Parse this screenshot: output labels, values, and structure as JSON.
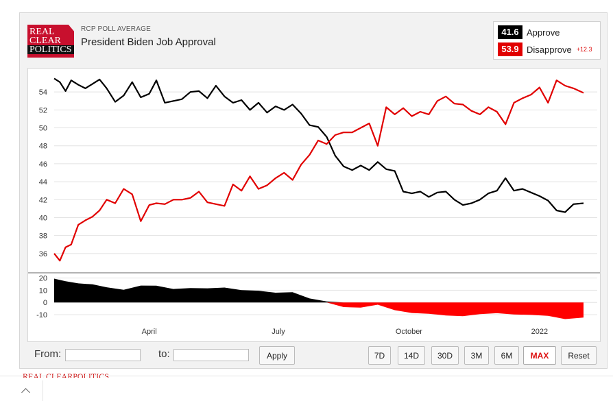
{
  "header": {
    "logo_lines": [
      "REAL",
      "CLEAR",
      "POLITICS"
    ],
    "kicker": "RCP POLL AVERAGE",
    "title": "President Biden Job Approval"
  },
  "legend": {
    "approve": {
      "value": "41.6",
      "name": "Approve",
      "color": "#000000"
    },
    "disapprove": {
      "value": "53.9",
      "name": "Disapprove",
      "color": "#e10000",
      "spread": "+12.3"
    }
  },
  "controls": {
    "from_label": "From:",
    "to_label": "to:",
    "from_value": "",
    "to_value": "",
    "apply_label": "Apply",
    "ranges": [
      "7D",
      "14D",
      "30D",
      "3M",
      "6M",
      "MAX",
      "Reset"
    ],
    "active_range": "MAX"
  },
  "footer": {
    "text": "REAL CLEARPOLITICS"
  },
  "chart_data": [
    {
      "type": "line",
      "x_axis": {
        "ticks": [
          "April",
          "July",
          "October",
          "2022"
        ]
      },
      "y_axis": {
        "ylim": [
          34,
          56
        ],
        "ticks": [
          36,
          38,
          40,
          42,
          44,
          46,
          48,
          50,
          52,
          54
        ]
      },
      "grid": true,
      "colors": {
        "approve": "#000000",
        "disapprove": "#e10000"
      },
      "series": [
        {
          "name": "Approve",
          "color": "#000000",
          "x": [
            "2021-01-24",
            "2021-01-28",
            "2021-02-01",
            "2021-02-05",
            "2021-02-10",
            "2021-02-15",
            "2021-02-20",
            "2021-02-25",
            "2021-03-02",
            "2021-03-08",
            "2021-03-14",
            "2021-03-20",
            "2021-03-26",
            "2021-04-01",
            "2021-04-06",
            "2021-04-12",
            "2021-04-18",
            "2021-04-24",
            "2021-04-30",
            "2021-05-06",
            "2021-05-12",
            "2021-05-18",
            "2021-05-24",
            "2021-05-30",
            "2021-06-05",
            "2021-06-11",
            "2021-06-17",
            "2021-06-23",
            "2021-06-29",
            "2021-07-05",
            "2021-07-11",
            "2021-07-17",
            "2021-07-23",
            "2021-07-29",
            "2021-08-04",
            "2021-08-10",
            "2021-08-16",
            "2021-08-22",
            "2021-08-28",
            "2021-09-03",
            "2021-09-09",
            "2021-09-15",
            "2021-09-21",
            "2021-09-27",
            "2021-10-03",
            "2021-10-09",
            "2021-10-15",
            "2021-10-21",
            "2021-10-27",
            "2021-11-02",
            "2021-11-08",
            "2021-11-14",
            "2021-11-20",
            "2021-11-26",
            "2021-12-02",
            "2021-12-08",
            "2021-12-14",
            "2021-12-20",
            "2021-12-26",
            "2022-01-01",
            "2022-01-07",
            "2022-01-13",
            "2022-01-19",
            "2022-01-25",
            "2022-02-01"
          ],
          "values": [
            55.5,
            55.1,
            54.1,
            55.3,
            54.8,
            54.4,
            54.9,
            55.4,
            54.4,
            52.9,
            53.6,
            55.1,
            53.4,
            53.8,
            55.3,
            52.8,
            53.0,
            53.2,
            54.0,
            54.1,
            53.3,
            54.7,
            53.5,
            52.8,
            53.1,
            52.0,
            52.8,
            51.7,
            52.4,
            52.0,
            52.6,
            51.6,
            50.3,
            50.1,
            49.0,
            46.9,
            45.7,
            45.3,
            45.8,
            45.3,
            46.2,
            45.4,
            45.2,
            42.9,
            42.7,
            42.9,
            42.3,
            42.8,
            42.9,
            42.0,
            41.4,
            41.6,
            42.0,
            42.7,
            43.0,
            44.4,
            43.0,
            43.2,
            42.8,
            42.4,
            41.9,
            40.8,
            40.6,
            41.5,
            41.6
          ]
        },
        {
          "name": "Disapprove",
          "color": "#e10000",
          "x": [
            "2021-01-24",
            "2021-01-28",
            "2021-02-01",
            "2021-02-05",
            "2021-02-10",
            "2021-02-15",
            "2021-02-20",
            "2021-02-25",
            "2021-03-02",
            "2021-03-08",
            "2021-03-14",
            "2021-03-20",
            "2021-03-26",
            "2021-04-01",
            "2021-04-06",
            "2021-04-12",
            "2021-04-18",
            "2021-04-24",
            "2021-04-30",
            "2021-05-06",
            "2021-05-12",
            "2021-05-18",
            "2021-05-24",
            "2021-05-30",
            "2021-06-05",
            "2021-06-11",
            "2021-06-17",
            "2021-06-23",
            "2021-06-29",
            "2021-07-05",
            "2021-07-11",
            "2021-07-17",
            "2021-07-23",
            "2021-07-29",
            "2021-08-04",
            "2021-08-10",
            "2021-08-16",
            "2021-08-22",
            "2021-08-28",
            "2021-09-03",
            "2021-09-09",
            "2021-09-15",
            "2021-09-21",
            "2021-09-27",
            "2021-10-03",
            "2021-10-09",
            "2021-10-15",
            "2021-10-21",
            "2021-10-27",
            "2021-11-02",
            "2021-11-08",
            "2021-11-14",
            "2021-11-20",
            "2021-11-26",
            "2021-12-02",
            "2021-12-08",
            "2021-12-14",
            "2021-12-20",
            "2021-12-26",
            "2022-01-01",
            "2022-01-07",
            "2022-01-13",
            "2022-01-19",
            "2022-01-25",
            "2022-02-01"
          ],
          "values": [
            36.0,
            35.2,
            36.7,
            37.0,
            39.2,
            39.7,
            40.1,
            40.8,
            42.0,
            41.6,
            43.2,
            42.6,
            39.6,
            41.4,
            41.6,
            41.5,
            42.0,
            42.0,
            42.2,
            42.9,
            41.7,
            41.5,
            41.3,
            43.7,
            43.0,
            44.6,
            43.2,
            43.6,
            44.4,
            45.0,
            44.2,
            45.9,
            47.0,
            48.6,
            48.2,
            49.2,
            49.5,
            49.5,
            50.0,
            50.5,
            48.0,
            52.3,
            51.5,
            52.2,
            51.3,
            51.8,
            51.5,
            53.0,
            53.5,
            52.7,
            52.6,
            51.9,
            51.5,
            52.3,
            51.8,
            50.4,
            52.8,
            53.3,
            53.7,
            54.5,
            52.8,
            55.3,
            54.7,
            54.4,
            53.9
          ]
        }
      ]
    },
    {
      "type": "area",
      "y_axis": {
        "ylim": [
          -15,
          22
        ],
        "ticks": [
          20,
          10,
          0,
          -10
        ]
      },
      "grid": true,
      "positive_color": "#000000",
      "negative_color": "#ff0000",
      "series": [
        {
          "name": "Spread",
          "x": [
            "2021-01-24",
            "2021-02-01",
            "2021-02-10",
            "2021-02-20",
            "2021-03-02",
            "2021-03-14",
            "2021-03-26",
            "2021-04-06",
            "2021-04-18",
            "2021-04-30",
            "2021-05-12",
            "2021-05-24",
            "2021-06-05",
            "2021-06-17",
            "2021-06-29",
            "2021-07-11",
            "2021-07-23",
            "2021-08-04",
            "2021-08-16",
            "2021-08-28",
            "2021-09-09",
            "2021-09-21",
            "2021-10-03",
            "2021-10-15",
            "2021-10-27",
            "2021-11-08",
            "2021-11-20",
            "2021-12-02",
            "2021-12-14",
            "2021-12-26",
            "2022-01-07",
            "2022-01-19",
            "2022-02-01"
          ],
          "values": [
            19.5,
            17.4,
            15.6,
            14.8,
            12.4,
            10.4,
            13.8,
            13.7,
            11.0,
            11.8,
            11.6,
            12.2,
            10.1,
            9.6,
            8.0,
            8.4,
            3.3,
            0.8,
            -3.8,
            -4.2,
            -1.8,
            -6.3,
            -8.6,
            -9.2,
            -10.6,
            -11.2,
            -9.5,
            -8.8,
            -9.8,
            -10.2,
            -10.9,
            -13.6,
            -12.3
          ]
        }
      ]
    }
  ]
}
